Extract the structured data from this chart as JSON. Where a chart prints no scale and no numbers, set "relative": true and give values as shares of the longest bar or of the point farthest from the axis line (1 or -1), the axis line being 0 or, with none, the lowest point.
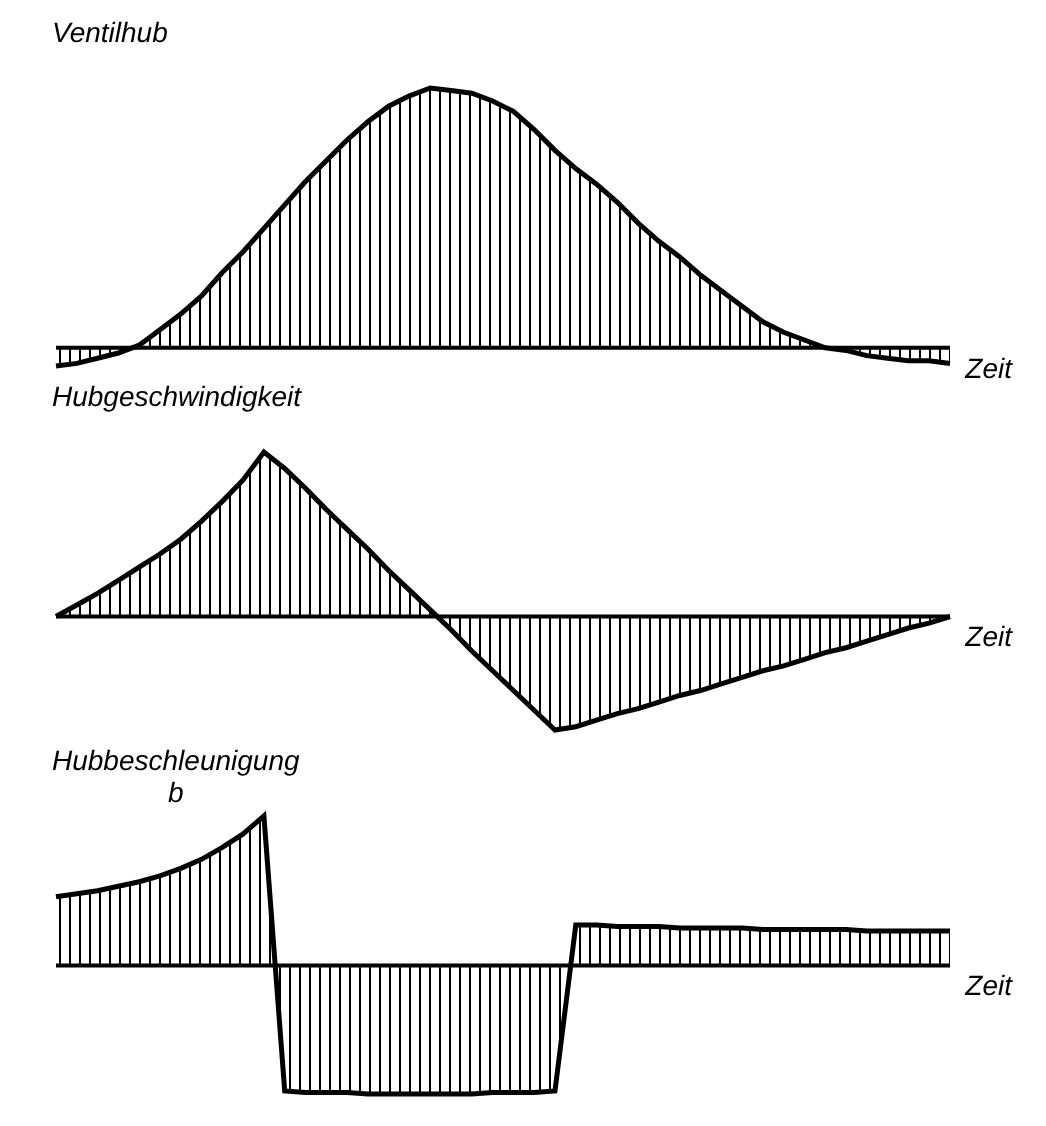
{
  "chart_data": [
    {
      "type": "area",
      "title": "Ventilhub",
      "xlabel": "Zeit",
      "relative": true,
      "tick_labels": false,
      "color": "#000000",
      "categories": [
        null,
        null,
        null,
        null,
        null,
        null,
        null,
        null,
        null,
        null,
        null,
        null,
        null,
        null,
        null,
        null,
        null,
        null,
        null,
        null,
        null,
        null,
        null,
        null,
        null,
        null,
        null,
        null,
        null,
        null,
        null,
        null,
        null,
        null,
        null,
        null,
        null,
        null,
        null,
        null,
        null,
        null,
        null,
        null
      ],
      "values": [
        -0.07,
        -0.06,
        -0.04,
        -0.02,
        0.01,
        0.07,
        0.13,
        0.2,
        0.29,
        0.37,
        0.46,
        0.55,
        0.64,
        0.72,
        0.8,
        0.87,
        0.93,
        0.97,
        1,
        0.99,
        0.98,
        0.95,
        0.91,
        0.84,
        0.76,
        0.69,
        0.63,
        0.56,
        0.48,
        0.41,
        0.35,
        0.28,
        0.22,
        0.16,
        0.1,
        0.06,
        0.03,
        0,
        -0.01,
        -0.03,
        -0.04,
        -0.05,
        -0.05,
        -0.06
      ]
    },
    {
      "type": "area",
      "title": "Hubgeschwindigkeit",
      "xlabel": "Zeit",
      "relative": true,
      "tick_labels": false,
      "color": "#000000",
      "categories": [
        null,
        null,
        null,
        null,
        null,
        null,
        null,
        null,
        null,
        null,
        null,
        null,
        null,
        null,
        null,
        null,
        null,
        null,
        null,
        null,
        null,
        null,
        null,
        null,
        null,
        null,
        null,
        null,
        null,
        null,
        null,
        null,
        null,
        null,
        null,
        null,
        null,
        null,
        null,
        null,
        null,
        null,
        null,
        null
      ],
      "values": [
        0,
        0.07,
        0.14,
        0.22,
        0.3,
        0.38,
        0.47,
        0.58,
        0.7,
        0.83,
        1,
        0.9,
        0.78,
        0.65,
        0.53,
        0.41,
        0.28,
        0.16,
        0.04,
        -0.08,
        -0.21,
        -0.33,
        -0.45,
        -0.57,
        -0.69,
        -0.67,
        -0.63,
        -0.59,
        -0.56,
        -0.52,
        -0.48,
        -0.45,
        -0.41,
        -0.37,
        -0.33,
        -0.3,
        -0.26,
        -0.22,
        -0.19,
        -0.15,
        -0.11,
        -0.07,
        -0.04,
        0
      ]
    },
    {
      "type": "area",
      "title": "Hubbeschleunigung",
      "subtitle": "b",
      "xlabel": "Zeit",
      "relative": true,
      "tick_labels": false,
      "color": "#000000",
      "categories": [
        null,
        null,
        null,
        null,
        null,
        null,
        null,
        null,
        null,
        null,
        null,
        null,
        null,
        null,
        null,
        null,
        null,
        null,
        null,
        null,
        null,
        null,
        null,
        null,
        null,
        null,
        null,
        null,
        null,
        null,
        null,
        null,
        null,
        null,
        null,
        null,
        null,
        null,
        null,
        null,
        null,
        null,
        null,
        null
      ],
      "values": [
        0.46,
        0.48,
        0.5,
        0.53,
        0.56,
        0.6,
        0.65,
        0.71,
        0.79,
        0.88,
        1,
        -0.84,
        -0.85,
        -0.85,
        -0.85,
        -0.86,
        -0.86,
        -0.86,
        -0.86,
        -0.86,
        -0.86,
        -0.85,
        -0.85,
        -0.85,
        -0.84,
        0.27,
        0.27,
        0.26,
        0.26,
        0.26,
        0.25,
        0.25,
        0.25,
        0.25,
        0.24,
        0.24,
        0.24,
        0.24,
        0.24,
        0.23,
        0.23,
        0.23,
        0.23,
        0.23
      ]
    }
  ]
}
